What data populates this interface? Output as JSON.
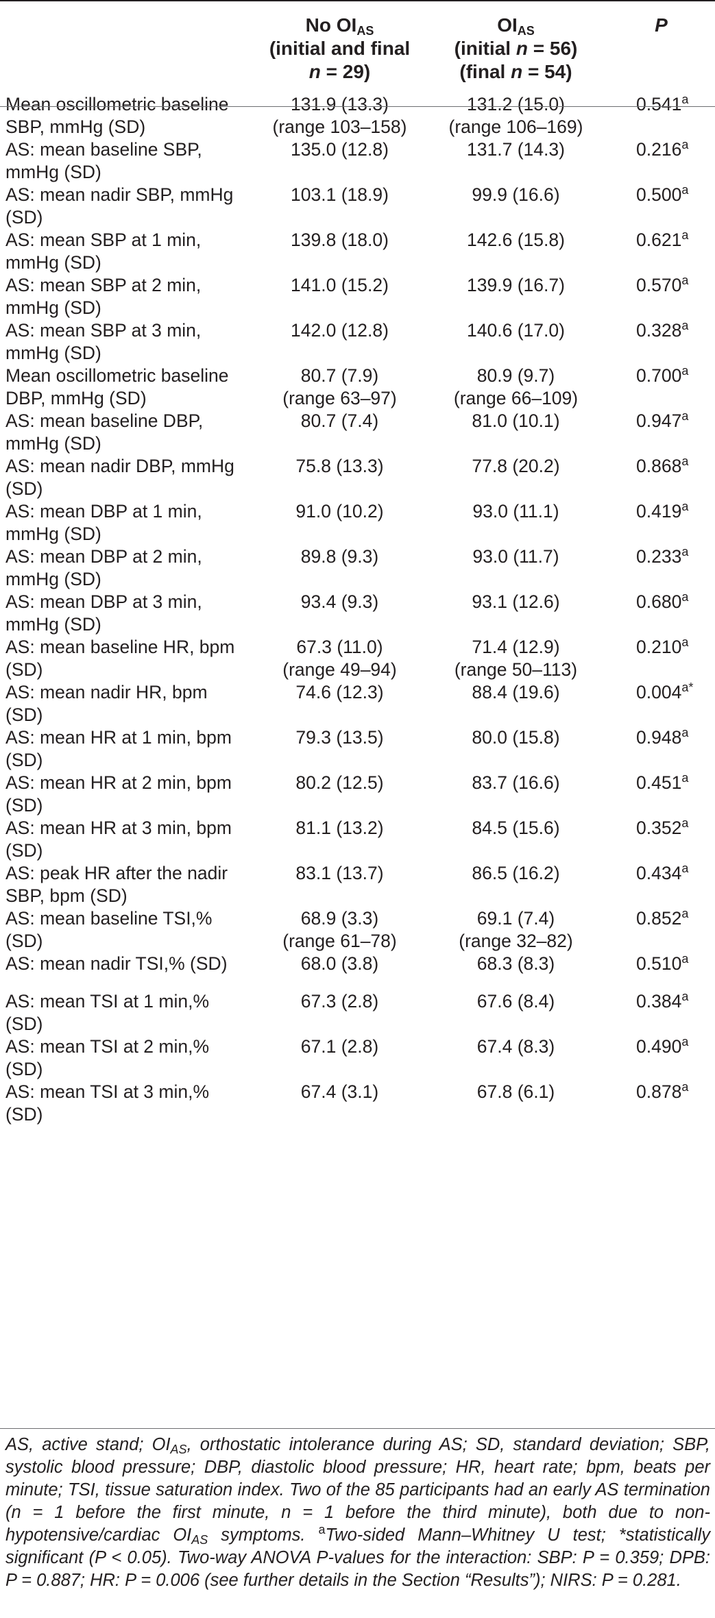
{
  "header": {
    "col1": "",
    "col2_line1_pre": "No OI",
    "col2_line1_sub": "AS",
    "col2_line2": "(initial and final",
    "col2_line3_n": "n",
    "col2_line3_rest": " = 29)",
    "col3_line1_pre": "OI",
    "col3_line1_sub": "AS",
    "col3_line2_pre": "(initial ",
    "col3_line2_n": "n",
    "col3_line2_rest": " = 56)",
    "col3_line3_pre": "(final ",
    "col3_line3_n": "n",
    "col3_line3_rest": " = 54)",
    "col4": "P"
  },
  "rows": [
    {
      "label": "Mean oscillometric baseline SBP, mmHg (SD)",
      "no_oi": "131.9 (13.3)",
      "no_oi_range": "(range 103–158)",
      "oi": "131.2 (15.0)",
      "oi_range": "(range 106–169)",
      "p": "0.541",
      "p_sup": "a"
    },
    {
      "label": "AS: mean baseline SBP, mmHg (SD)",
      "no_oi": "135.0 (12.8)",
      "no_oi_range": "",
      "oi": "131.7 (14.3)",
      "oi_range": "",
      "p": "0.216",
      "p_sup": "a"
    },
    {
      "label": "AS: mean nadir SBP, mmHg (SD)",
      "no_oi": "103.1 (18.9)",
      "no_oi_range": "",
      "oi": "99.9 (16.6)",
      "oi_range": "",
      "p": "0.500",
      "p_sup": "a"
    },
    {
      "label": "AS: mean SBP at 1 min, mmHg (SD)",
      "no_oi": "139.8 (18.0)",
      "no_oi_range": "",
      "oi": "142.6 (15.8)",
      "oi_range": "",
      "p": "0.621",
      "p_sup": "a"
    },
    {
      "label": "AS: mean SBP at 2 min, mmHg (SD)",
      "no_oi": "141.0 (15.2)",
      "no_oi_range": "",
      "oi": "139.9 (16.7)",
      "oi_range": "",
      "p": "0.570",
      "p_sup": "a"
    },
    {
      "label": "AS: mean SBP at 3 min, mmHg (SD)",
      "no_oi": "142.0 (12.8)",
      "no_oi_range": "",
      "oi": "140.6 (17.0)",
      "oi_range": "",
      "p": "0.328",
      "p_sup": "a"
    },
    {
      "label": "Mean oscillometric baseline DBP, mmHg (SD)",
      "no_oi": "80.7 (7.9)",
      "no_oi_range": "(range 63–97)",
      "oi": "80.9 (9.7)",
      "oi_range": "(range 66–109)",
      "p": "0.700",
      "p_sup": "a"
    },
    {
      "label": "AS: mean baseline DBP, mmHg (SD)",
      "no_oi": "80.7 (7.4)",
      "no_oi_range": "",
      "oi": "81.0 (10.1)",
      "oi_range": "",
      "p": "0.947",
      "p_sup": "a"
    },
    {
      "label": "AS: mean nadir DBP, mmHg (SD)",
      "no_oi": "75.8 (13.3)",
      "no_oi_range": "",
      "oi": "77.8 (20.2)",
      "oi_range": "",
      "p": "0.868",
      "p_sup": "a"
    },
    {
      "label": "AS: mean DBP at 1 min, mmHg (SD)",
      "no_oi": "91.0 (10.2)",
      "no_oi_range": "",
      "oi": "93.0 (11.1)",
      "oi_range": "",
      "p": "0.419",
      "p_sup": "a"
    },
    {
      "label": "AS: mean DBP at 2 min, mmHg (SD)",
      "no_oi": "89.8 (9.3)",
      "no_oi_range": "",
      "oi": "93.0 (11.7)",
      "oi_range": "",
      "p": "0.233",
      "p_sup": "a"
    },
    {
      "label": "AS: mean DBP at 3 min, mmHg (SD)",
      "no_oi": "93.4 (9.3)",
      "no_oi_range": "",
      "oi": "93.1 (12.6)",
      "oi_range": "",
      "p": "0.680",
      "p_sup": "a"
    },
    {
      "label": "AS: mean baseline HR, bpm (SD)",
      "no_oi": "67.3 (11.0)",
      "no_oi_range": "(range 49–94)",
      "oi": "71.4 (12.9)",
      "oi_range": "(range 50–113)",
      "p": "0.210",
      "p_sup": "a"
    },
    {
      "label": "AS: mean nadir HR, bpm (SD)",
      "no_oi": "74.6 (12.3)",
      "no_oi_range": "",
      "oi": "88.4 (19.6)",
      "oi_range": "",
      "p": "0.004",
      "p_sup": "a*"
    },
    {
      "label": "AS: mean HR at 1 min, bpm (SD)",
      "no_oi": "79.3 (13.5)",
      "no_oi_range": "",
      "oi": "80.0 (15.8)",
      "oi_range": "",
      "p": "0.948",
      "p_sup": "a"
    },
    {
      "label": "AS: mean HR at 2 min, bpm (SD)",
      "no_oi": "80.2 (12.5)",
      "no_oi_range": "",
      "oi": "83.7 (16.6)",
      "oi_range": "",
      "p": "0.451",
      "p_sup": "a"
    },
    {
      "label": "AS: mean HR at 3 min, bpm (SD)",
      "no_oi": "81.1 (13.2)",
      "no_oi_range": "",
      "oi": "84.5 (15.6)",
      "oi_range": "",
      "p": "0.352",
      "p_sup": "a"
    },
    {
      "label": "AS: peak HR after the nadir SBP, bpm (SD)",
      "no_oi": "83.1 (13.7)",
      "no_oi_range": "",
      "oi": "86.5 (16.2)",
      "oi_range": "",
      "p": "0.434",
      "p_sup": "a"
    },
    {
      "label": "AS: mean baseline TSI,% (SD)",
      "no_oi": "68.9 (3.3)",
      "no_oi_range": "(range 61–78)",
      "oi": "69.1 (7.4)",
      "oi_range": "(range 32–82)",
      "p": "0.852",
      "p_sup": "a"
    },
    {
      "label": "AS: mean nadir TSI,% (SD)",
      "no_oi": "68.0 (3.8)",
      "no_oi_range": "",
      "oi": "68.3 (8.3)",
      "oi_range": "",
      "p": "0.510",
      "p_sup": "a"
    },
    {
      "label": "AS: mean TSI at 1 min,% (SD)",
      "no_oi": "67.3 (2.8)",
      "no_oi_range": "",
      "oi": "67.6 (8.4)",
      "oi_range": "",
      "p": "0.384",
      "p_sup": "a"
    },
    {
      "label": "AS: mean TSI at 2 min,% (SD)",
      "no_oi": "67.1 (2.8)",
      "no_oi_range": "",
      "oi": "67.4 (8.3)",
      "oi_range": "",
      "p": "0.490",
      "p_sup": "a"
    },
    {
      "label": "AS: mean TSI at 3 min,% (SD)",
      "no_oi": "67.4 (3.1)",
      "no_oi_range": "",
      "oi": "67.8 (6.1)",
      "oi_range": "",
      "p": "0.878",
      "p_sup": "a"
    }
  ],
  "footnote": {
    "part1": "AS, active stand; OI",
    "part1_sub": "AS",
    "part2": ", orthostatic intolerance during AS; SD, standard deviation; SBP, systolic blood pressure; DBP, diastolic blood pressure; HR, heart rate; bpm, beats per minute; TSI, tissue saturation index. Two of the 85 participants had an early AS termination (n = 1 before the first minute, n = 1 before the third minute), both due to non-hypotensive/cardiac OI",
    "part2_sub": "AS",
    "part3": " symptoms. ",
    "part3_sup": "a",
    "part4": "Two-sided Mann–Whitney U test; *statistically significant (P < 0.05). Two-way ANOVA P-values for the interaction: SBP: P = 0.359; DPB: P = 0.887; HR: P = 0.006 (see further details in the Section “Results”); NIRS: P = 0.281."
  }
}
